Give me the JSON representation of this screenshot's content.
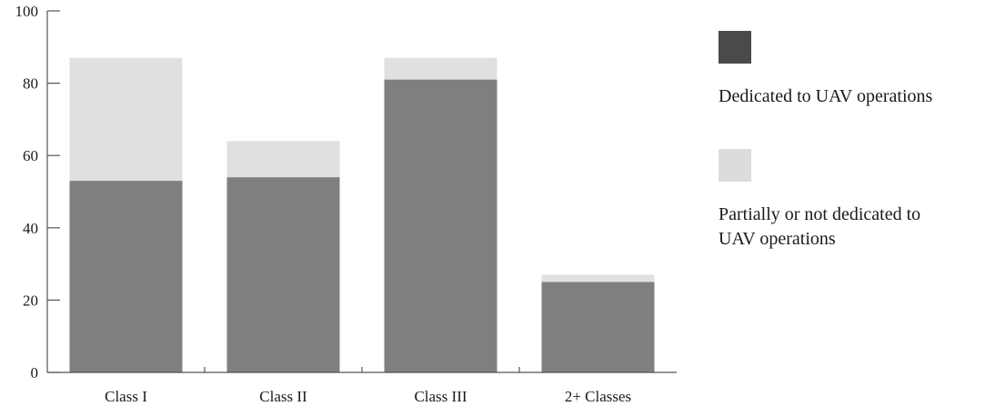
{
  "chart_data": {
    "type": "bar",
    "stacked": true,
    "categories": [
      "Class I",
      "Class II",
      "Class III",
      "2+ Classes"
    ],
    "series": [
      {
        "name": "Dedicated to UAV operations",
        "values": [
          53,
          54,
          81,
          25
        ],
        "color": "#7f7f81"
      },
      {
        "name": "Partially or not dedicated to UAV operations",
        "values": [
          34,
          10,
          6,
          2
        ],
        "color": "#e0e0e2"
      }
    ],
    "legend": {
      "placement": "right",
      "entries": [
        {
          "label_lines": [
            "Dedicated to UAV operations"
          ],
          "swatch_color": "#4a4a4c"
        },
        {
          "label_lines": [
            "Partially or not dedicated to",
            "UAV operations"
          ],
          "swatch_color": "#dcdcde"
        }
      ]
    },
    "y_ticks": [
      "0",
      "20",
      "40",
      "60",
      "80",
      "100"
    ],
    "ylim": [
      0,
      100
    ],
    "grid": false,
    "title": "",
    "xlabel": "",
    "ylabel": ""
  }
}
